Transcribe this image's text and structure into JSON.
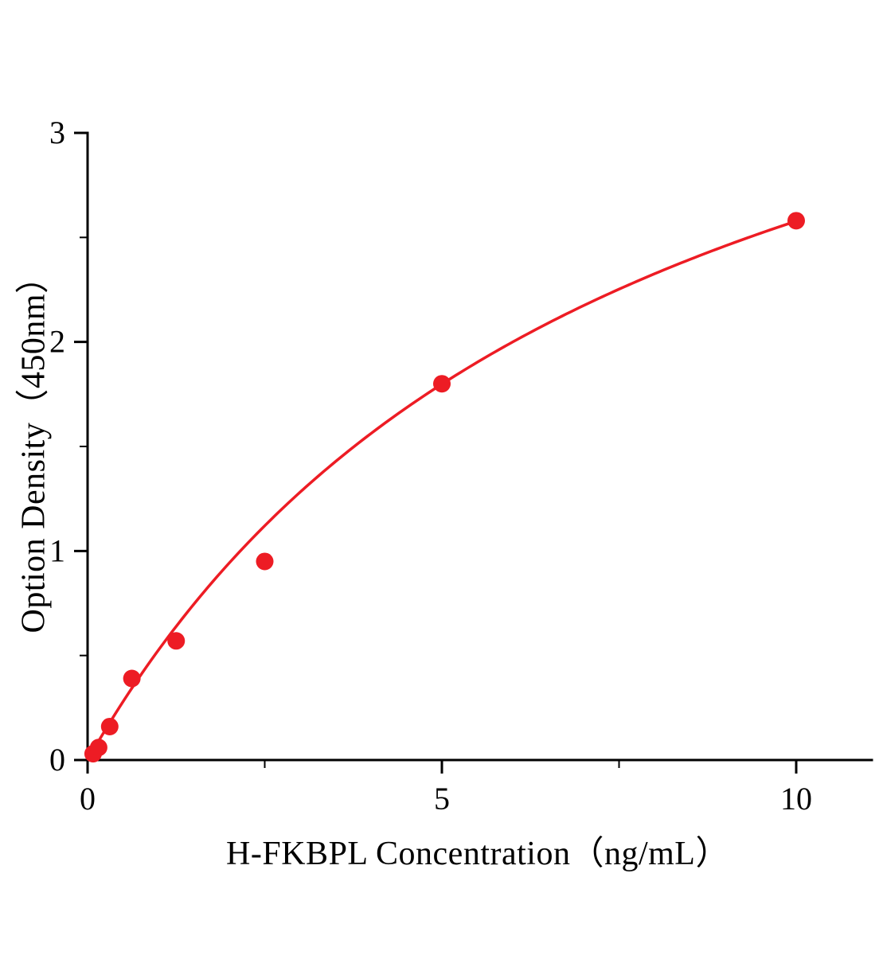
{
  "chart_data": {
    "type": "scatter",
    "title": "",
    "xlabel": "H-FKBPL Concentration（ng/mL）",
    "ylabel": "Option Density（450nm）",
    "x": [
      0.078,
      0.156,
      0.3125,
      0.625,
      1.25,
      2.5,
      5,
      10
    ],
    "y": [
      0.03,
      0.06,
      0.16,
      0.39,
      0.57,
      0.95,
      1.8,
      2.58
    ],
    "xlim": [
      0,
      11
    ],
    "ylim": [
      0,
      3
    ],
    "x_major_ticks": [
      0,
      5,
      10
    ],
    "x_minor_ticks": [
      2.5,
      7.5
    ],
    "y_major_ticks": [
      0,
      1,
      2,
      3
    ],
    "y_minor_ticks": [
      0.5,
      1.5,
      2.5
    ],
    "curve_fit": {
      "model": "y = a*x/(b+x)",
      "a": 4.55,
      "b": 7.65
    },
    "marker_color": "#ed1c24",
    "line_color": "#ed1c24",
    "axis_color": "#000000",
    "grid": false,
    "legend": null
  }
}
